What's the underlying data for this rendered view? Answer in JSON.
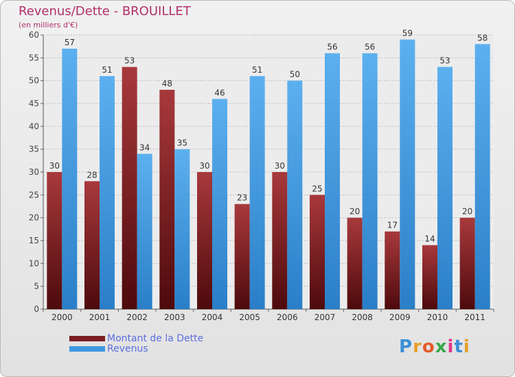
{
  "header": {
    "title": "Revenus/Dette - BROUILLET",
    "subtitle": "(en milliers d'€)"
  },
  "colors": {
    "dette": "#7a1e22",
    "revenus": "#3d97e0",
    "title": "#b0306a",
    "legend_text": "#5b6ee0"
  },
  "logo": {
    "text": "Proxiti"
  },
  "chart_data": {
    "type": "bar",
    "title": "Revenus/Dette - BROUILLET",
    "subtitle": "(en milliers d'€)",
    "xlabel": "",
    "ylabel": "",
    "ylim": [
      0,
      60
    ],
    "yticks": [
      0,
      5,
      10,
      15,
      20,
      25,
      30,
      35,
      40,
      45,
      50,
      55,
      60
    ],
    "grid": true,
    "legend_position": "bottom-left",
    "categories": [
      "2000",
      "2001",
      "2002",
      "2003",
      "2004",
      "2005",
      "2006",
      "2007",
      "2008",
      "2009",
      "2010",
      "2011"
    ],
    "series": [
      {
        "name": "Montant de la Dette",
        "color": "#7a1e22",
        "values": [
          30,
          28,
          53,
          48,
          30,
          23,
          30,
          25,
          20,
          17,
          14,
          20
        ]
      },
      {
        "name": "Revenus",
        "color": "#3d97e0",
        "values": [
          57,
          51,
          34,
          35,
          46,
          51,
          50,
          56,
          56,
          59,
          53,
          58
        ]
      }
    ]
  }
}
